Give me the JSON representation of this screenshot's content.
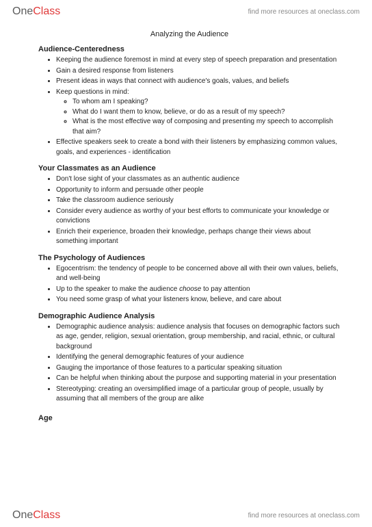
{
  "brand": {
    "part1": "One",
    "part2": "Class",
    "tagline": "find more resources at oneclass.com"
  },
  "doc": {
    "title": "Analyzing the Audience",
    "sections": [
      {
        "heading": "Audience-Centeredness",
        "items": [
          {
            "text": "Keeping the audience foremost in mind at every step of speech preparation and presentation"
          },
          {
            "text": "Gain a desired response from listeners"
          },
          {
            "text": "Present ideas in ways that connect with audience's goals, values, and beliefs"
          },
          {
            "text": "Keep questions in mind:",
            "sub": [
              "To whom am I speaking?",
              "What do I want them to know, believe, or do as a result of my speech?",
              "What is the most effective way of composing and presenting my speech to accomplish that aim?"
            ]
          },
          {
            "text": "Effective speakers seek to create a bond with their listeners by emphasizing common values, goals, and experiences - identification"
          }
        ]
      },
      {
        "heading": "Your Classmates as an Audience",
        "items": [
          {
            "text": "Don't lose sight of your classmates as an authentic audience"
          },
          {
            "text": "Opportunity to inform and persuade other people"
          },
          {
            "text": "Take the classroom audience seriously"
          },
          {
            "text": "Consider every audience as worthy of your best efforts to communicate your knowledge or convictions"
          },
          {
            "text": "Enrich their experience, broaden their knowledge, perhaps change their views about something important"
          }
        ]
      },
      {
        "heading": "The Psychology of Audiences",
        "items": [
          {
            "text": "Egocentrism: the tendency of people to be concerned above all with their own values, beliefs, and well-being"
          },
          {
            "html": "Up to the speaker to make the audience <span class=\"italic\">choose</span> to pay attention"
          },
          {
            "text": "You need some grasp of what your listeners know, believe, and care about"
          }
        ]
      },
      {
        "heading": "Demographic Audience Analysis",
        "items": [
          {
            "text": "Demographic audience analysis: audience analysis that focuses on demographic factors such as age, gender, religion, sexual orientation, group membership, and racial, ethnic, or cultural background"
          },
          {
            "text": "Identifying the general demographic features of your audience"
          },
          {
            "text": "Gauging the importance of those features to a particular speaking situation"
          },
          {
            "text": "Can be helpful when thinking about the purpose and supporting material in your presentation"
          },
          {
            "text": "Stereotyping: creating an oversimplified image of a particular group of people, usually by assuming that all members of the group are alike"
          }
        ]
      }
    ],
    "trailing_head": "Age"
  }
}
